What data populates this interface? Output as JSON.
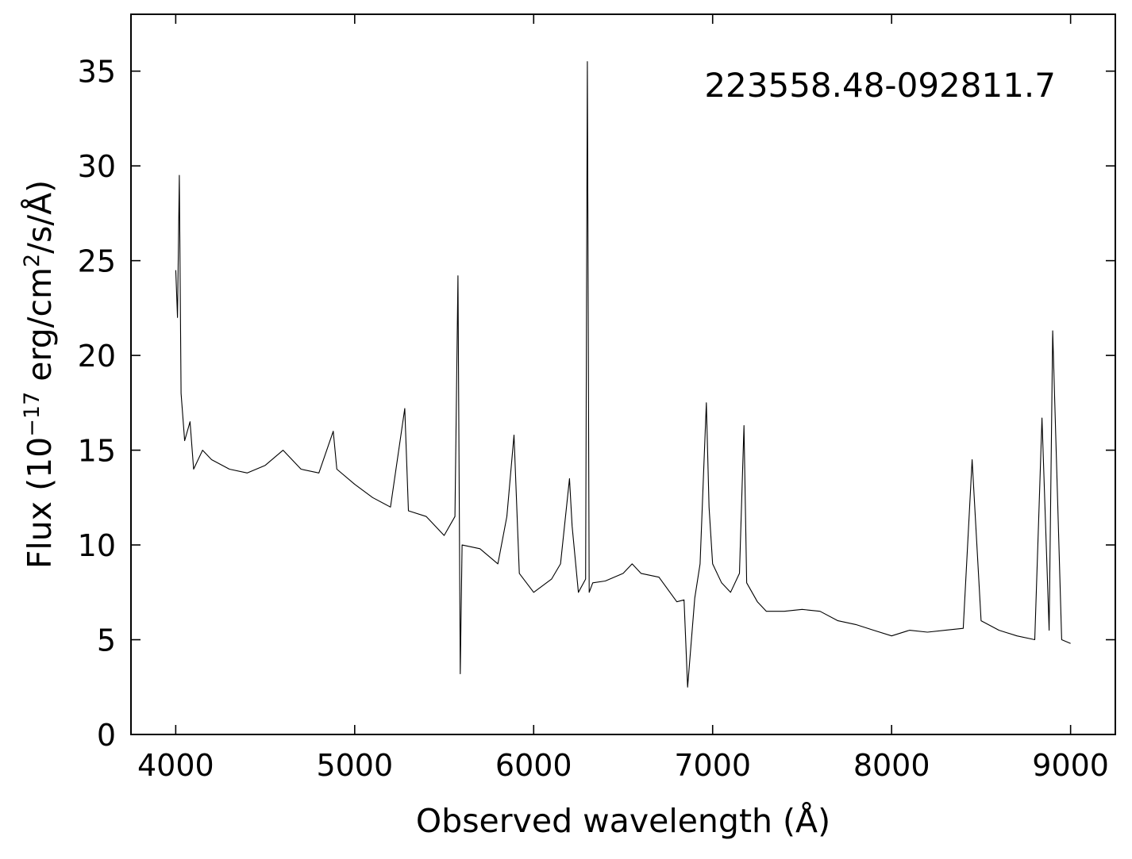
{
  "chart_data": {
    "type": "line",
    "annotation": "223558.48-092811.7",
    "xlabel": "Observed wavelength (Å)",
    "ylabel": {
      "prefix": "Flux (10",
      "exponent": "−17",
      "middle": " erg/cm",
      "exponent2": "2",
      "suffix": "/s/Å)"
    },
    "xlim": [
      3750,
      9250
    ],
    "ylim": [
      0,
      38
    ],
    "x_ticks": [
      4000,
      5000,
      6000,
      7000,
      8000,
      9000
    ],
    "x_tick_labels": [
      "4000",
      "5000",
      "6000",
      "7000",
      "8000",
      "9000"
    ],
    "y_ticks": [
      0,
      5,
      10,
      15,
      20,
      25,
      30,
      35
    ],
    "y_tick_labels": [
      "0",
      "5",
      "10",
      "15",
      "20",
      "25",
      "30",
      "35"
    ],
    "grid": false,
    "line_color": "#000000",
    "series": [
      {
        "x": [
          4000,
          4010,
          4020,
          4030,
          4050,
          4080,
          4100,
          4150,
          4200,
          4300,
          4400,
          4500,
          4600,
          4700,
          4800,
          4880,
          4900,
          5000,
          5100,
          5200,
          5280,
          5300,
          5400,
          5500,
          5560,
          5577,
          5590,
          5600,
          5700,
          5800,
          5850,
          5890,
          5920,
          6000,
          6100,
          6150,
          6200,
          6215,
          6250,
          6290,
          6300,
          6310,
          6330,
          6400,
          6500,
          6550,
          6600,
          6700,
          6800,
          6840,
          6860,
          6900,
          6930,
          6950,
          6965,
          6980,
          7000,
          7050,
          7100,
          7150,
          7175,
          7190,
          7250,
          7300,
          7400,
          7500,
          7600,
          7700,
          7800,
          7900,
          8000,
          8100,
          8200,
          8300,
          8400,
          8450,
          8500,
          8600,
          8700,
          8800,
          8840,
          8880,
          8900,
          8950,
          9000
        ],
        "y": [
          24.5,
          22,
          29.5,
          18,
          15.5,
          16.5,
          14,
          15,
          14.5,
          14,
          13.8,
          14.2,
          15,
          14,
          13.8,
          16,
          14,
          13.2,
          12.5,
          12,
          17.2,
          11.8,
          11.5,
          10.5,
          11.5,
          24.2,
          3.2,
          10,
          9.8,
          9,
          11.5,
          15.8,
          8.5,
          7.5,
          8.2,
          9,
          13.5,
          11,
          7.5,
          8.2,
          35.5,
          7.5,
          8,
          8.1,
          8.5,
          9,
          8.5,
          8.3,
          7,
          7.1,
          2.5,
          7.2,
          9,
          14,
          17.5,
          12,
          9,
          8,
          7.5,
          8.5,
          16.3,
          8,
          7,
          6.5,
          6.5,
          6.6,
          6.5,
          6,
          5.8,
          5.5,
          5.2,
          5.5,
          5.4,
          5.5,
          5.6,
          14.5,
          6,
          5.5,
          5.2,
          5,
          16.7,
          5.5,
          21.3,
          5,
          4.8
        ]
      }
    ]
  }
}
